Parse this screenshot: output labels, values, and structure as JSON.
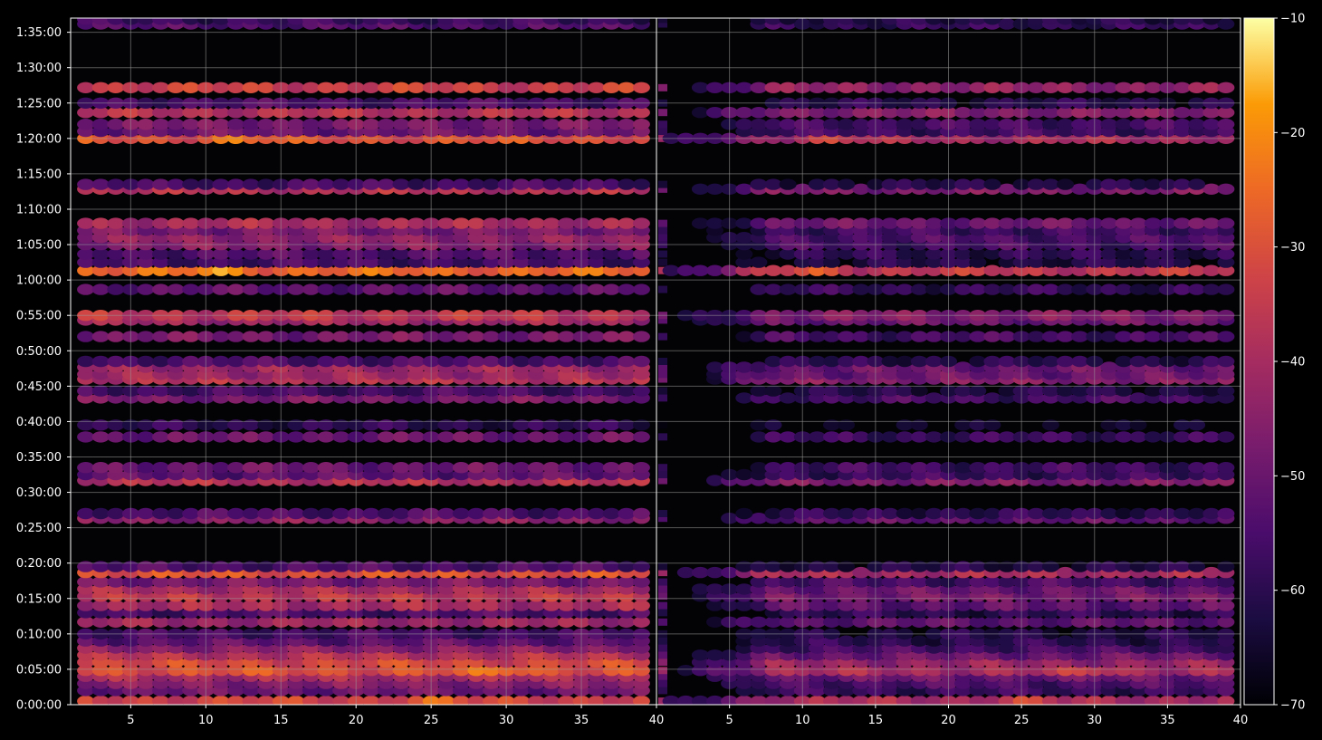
{
  "chart_data": {
    "type": "heatmap",
    "title": "",
    "xlabel": "",
    "ylabel": "",
    "panels": [
      {
        "name": "",
        "xlim": [
          1,
          40
        ],
        "xticks": [
          5,
          10,
          15,
          20,
          25,
          30,
          35
        ]
      },
      {
        "name": "",
        "xlim": [
          0,
          40
        ],
        "xticks": [
          5,
          10,
          15,
          20,
          25,
          30,
          35,
          40
        ]
      }
    ],
    "shared_xtick_label": "40",
    "ylim_seconds": [
      0,
      5820
    ],
    "yticks": [
      "0:00:00",
      "0:05:00",
      "0:10:00",
      "0:15:00",
      "0:20:00",
      "0:25:00",
      "0:30:00",
      "0:35:00",
      "0:40:00",
      "0:45:00",
      "0:50:00",
      "0:55:00",
      "1:00:00",
      "1:05:00",
      "1:10:00",
      "1:15:00",
      "1:20:00",
      "1:25:00",
      "1:30:00",
      "1:35:00"
    ],
    "grid": true,
    "colormap": "inferno",
    "colorbar": {
      "range": [
        -70,
        -10
      ],
      "ticks": [
        "−10",
        "−20",
        "−30",
        "−40",
        "−50",
        "−60",
        "−70"
      ]
    },
    "rows": [
      {
        "time": "0:00:30",
        "left": -33,
        "right": -40,
        "peak": 25
      },
      {
        "time": "0:02:00",
        "left": -50,
        "right": -58
      },
      {
        "time": "0:03:00",
        "left": -46,
        "right": -55
      },
      {
        "time": "0:04:00",
        "left": -40,
        "right": -50
      },
      {
        "time": "0:04:50",
        "left": -30,
        "right": -40,
        "peak": 30
      },
      {
        "time": "0:06:00",
        "left": -32,
        "right": -43
      },
      {
        "time": "0:07:00",
        "left": -38,
        "right": -50
      },
      {
        "time": "0:08:00",
        "left": -45,
        "right": -56
      },
      {
        "time": "0:09:00",
        "left": -52,
        "right": -60
      },
      {
        "time": "0:10:00",
        "left": -56,
        "right": -62
      },
      {
        "time": "0:11:40",
        "left": -42,
        "right": -52
      },
      {
        "time": "0:13:00",
        "left": -55,
        "right": -60
      },
      {
        "time": "0:14:00",
        "left": -40,
        "right": -52
      },
      {
        "time": "0:15:20",
        "left": -36,
        "right": -48
      },
      {
        "time": "0:16:20",
        "left": -40,
        "right": -50
      },
      {
        "time": "0:17:20",
        "left": -48,
        "right": -56
      },
      {
        "time": "0:18:40",
        "left": -30,
        "right": -40
      },
      {
        "time": "0:19:30",
        "left": -55,
        "right": -62
      },
      {
        "time": "0:26:20",
        "left": -45,
        "right": -52
      },
      {
        "time": "0:27:00",
        "left": -55,
        "right": -60
      },
      {
        "time": "0:31:40",
        "left": -38,
        "right": -47
      },
      {
        "time": "0:32:30",
        "left": -52,
        "right": -58
      },
      {
        "time": "0:33:30",
        "left": -50,
        "right": -57
      },
      {
        "time": "0:37:50",
        "left": -50,
        "right": -58
      },
      {
        "time": "0:39:30",
        "left": -60,
        "right": -67
      },
      {
        "time": "0:43:20",
        "left": -48,
        "right": -56
      },
      {
        "time": "0:44:20",
        "left": -56,
        "right": -62
      },
      {
        "time": "0:46:00",
        "left": -38,
        "right": -46
      },
      {
        "time": "0:46:40",
        "left": -42,
        "right": -50
      },
      {
        "time": "0:47:40",
        "left": -42,
        "right": -50
      },
      {
        "time": "0:48:30",
        "left": -55,
        "right": -61
      },
      {
        "time": "0:52:00",
        "left": -48,
        "right": -56
      },
      {
        "time": "0:54:20",
        "left": -42,
        "right": -50
      },
      {
        "time": "0:55:00",
        "left": -36,
        "right": -46
      },
      {
        "time": "0:58:40",
        "left": -52,
        "right": -59
      },
      {
        "time": "1:01:20",
        "left": -26,
        "right": -36,
        "peak": 11
      },
      {
        "time": "1:02:30",
        "left": -56,
        "right": -62
      },
      {
        "time": "1:03:40",
        "left": -54,
        "right": -60
      },
      {
        "time": "1:05:00",
        "left": -46,
        "right": -56
      },
      {
        "time": "1:06:00",
        "left": -44,
        "right": -55
      },
      {
        "time": "1:07:00",
        "left": -48,
        "right": -57
      },
      {
        "time": "1:08:00",
        "left": -40,
        "right": -50
      },
      {
        "time": "1:12:50",
        "left": -38,
        "right": -47
      },
      {
        "time": "1:13:30",
        "left": -56,
        "right": -62
      },
      {
        "time": "1:20:00",
        "left": -30,
        "right": -40,
        "peak": 12
      },
      {
        "time": "1:21:00",
        "left": -50,
        "right": -57
      },
      {
        "time": "1:22:00",
        "left": -48,
        "right": -56
      },
      {
        "time": "1:23:40",
        "left": -38,
        "right": -46
      },
      {
        "time": "1:25:00",
        "left": -55,
        "right": -61
      },
      {
        "time": "1:27:10",
        "left": -34,
        "right": -44
      },
      {
        "time": "1:36:10",
        "left": -54,
        "right": -59
      },
      {
        "time": "1:36:50",
        "left": -58,
        "right": -62
      }
    ]
  }
}
